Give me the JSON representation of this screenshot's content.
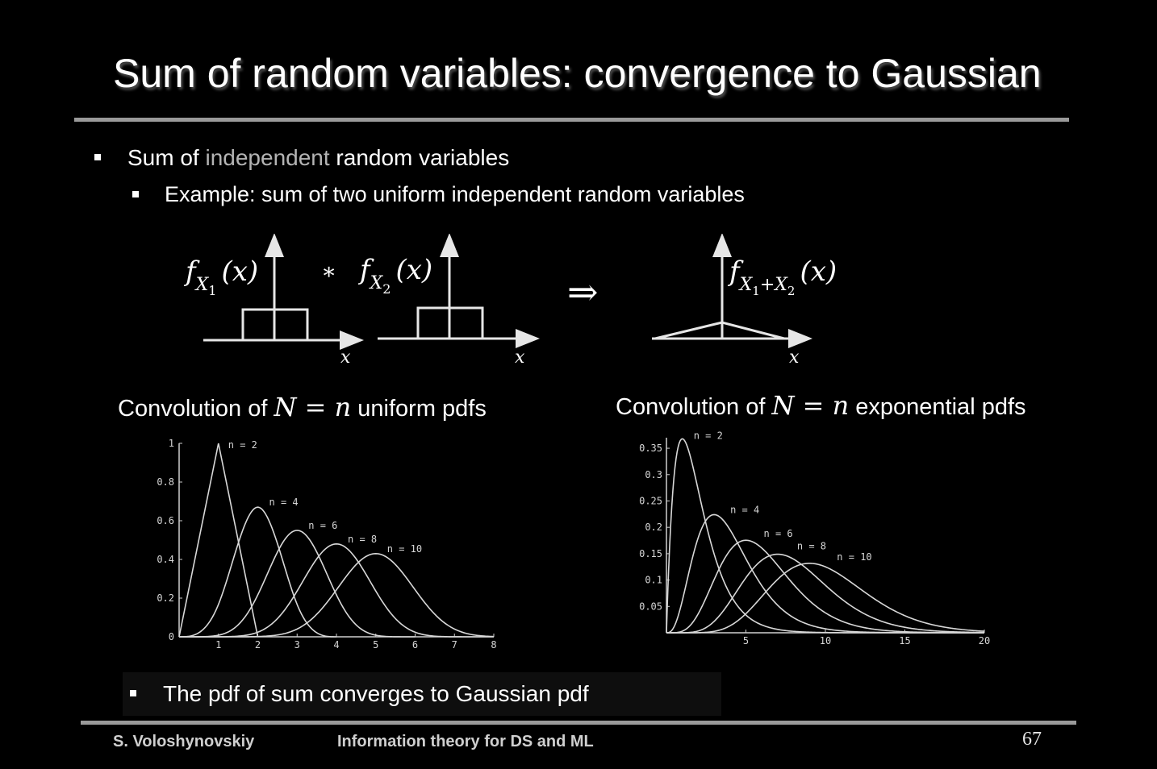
{
  "slide": {
    "title": "Sum of random variables: convergence to Gaussian",
    "bullets": {
      "b1_pre": "Sum of ",
      "b1_hl": "independent",
      "b1_post": " random variables",
      "b2": "Example: sum of two uniform independent random variables",
      "b3": "The pdf of sum converges to Gaussian pdf"
    },
    "diagram": {
      "f1": "f",
      "f1_sub": "X",
      "f1_sub2": "1",
      "arg": "(x)",
      "conv": "∗",
      "f2": "f",
      "f2_sub": "X",
      "f2_sub2": "2",
      "implies": "⇒",
      "f3": "f",
      "f3_sub": "X",
      "f3_sub_a": "1",
      "f3_plus": "+X",
      "f3_sub_b": "2",
      "axis_label": "x"
    },
    "captions": {
      "left_pre": "Convolution of ",
      "left_math": "N = n",
      "left_post": " uniform pdfs",
      "right_pre": "Convolution of ",
      "right_math": "N = n",
      "right_post": " exponential pdfs"
    },
    "footer": {
      "author": "S. Voloshynovskiy",
      "course": "Information theory for DS and ML",
      "page": "67"
    }
  },
  "chart_data": [
    {
      "type": "line",
      "title": "",
      "x_ticks": [
        "1",
        "2",
        "3",
        "4",
        "5",
        "6",
        "7",
        "8"
      ],
      "y_ticks": [
        "0",
        "0.2",
        "0.4",
        "0.6",
        "0.8",
        "1"
      ],
      "xlim": [
        0,
        8
      ],
      "ylim": [
        0,
        1
      ],
      "series": [
        {
          "name": "n = 2",
          "x": [
            0,
            1,
            2
          ],
          "values": [
            0,
            1.0,
            0
          ]
        },
        {
          "name": "n = 4",
          "peak_x": 2,
          "peak_y": 0.67,
          "x": [
            0,
            4
          ]
        },
        {
          "name": "n = 6",
          "peak_x": 3,
          "peak_y": 0.55,
          "x": [
            0,
            6
          ]
        },
        {
          "name": "n = 8",
          "peak_x": 4,
          "peak_y": 0.48,
          "x": [
            0,
            8
          ]
        },
        {
          "name": "n = 10",
          "peak_x": 5,
          "peak_y": 0.43,
          "x": [
            0,
            8
          ]
        }
      ],
      "grid": false
    },
    {
      "type": "line",
      "title": "",
      "x_ticks": [
        "5",
        "10",
        "15",
        "20"
      ],
      "y_ticks": [
        "0.05",
        "0.1",
        "0.15",
        "0.2",
        "0.25",
        "0.3",
        "0.35"
      ],
      "xlim": [
        0,
        20
      ],
      "ylim": [
        0,
        0.37
      ],
      "series": [
        {
          "name": "n = 2",
          "k": 2
        },
        {
          "name": "n = 4",
          "k": 4
        },
        {
          "name": "n = 6",
          "k": 6
        },
        {
          "name": "n = 8",
          "k": 8
        },
        {
          "name": "n = 10",
          "k": 10
        }
      ],
      "grid": false
    }
  ]
}
